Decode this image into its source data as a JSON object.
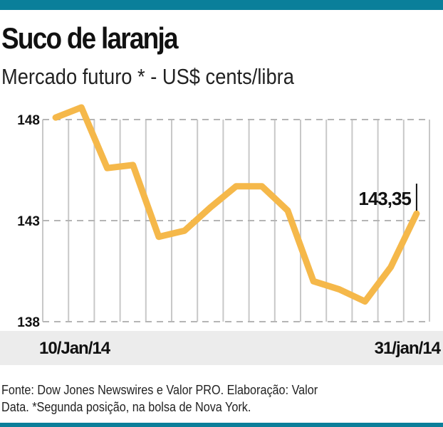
{
  "header": {
    "title": "Suco de laranja",
    "subtitle": "Mercado futuro * - US$ cents/libra"
  },
  "chart_data": {
    "type": "line",
    "title": "Suco de laranja",
    "subtitle": "Mercado futuro * - US$ cents/libra",
    "xlabel": "",
    "ylabel": "US$ cents/libra",
    "ylim": [
      138,
      148
    ],
    "yticks": [
      "148",
      "143",
      "138"
    ],
    "ytick_values": [
      148,
      143,
      138
    ],
    "x_start_label": "10/Jan/14",
    "x_end_label": "31/jan/14",
    "grid": true,
    "series": [
      {
        "name": "Suco de laranja",
        "color": "#f5b84a",
        "values": [
          148.1,
          148.6,
          145.6,
          145.75,
          142.2,
          142.5,
          143.65,
          144.7,
          144.7,
          143.5,
          140.0,
          139.6,
          139.0,
          140.7,
          143.35
        ]
      }
    ],
    "last_value_label": "143,35"
  },
  "footer": {
    "line1": "Fonte: Dow Jones Newswires e Valor PRO. Elaboração: Valor",
    "line2": "Data.  *Segunda posição, na bolsa de Nova York."
  }
}
